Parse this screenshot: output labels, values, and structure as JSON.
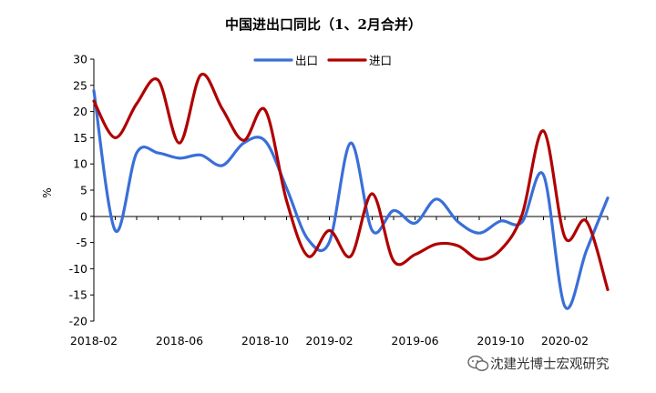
{
  "chart_data": {
    "type": "line",
    "title": "中国进出口同比（1、2月合并）",
    "xlabel": "",
    "ylabel": "%",
    "ylim": [
      -20,
      30
    ],
    "yticks": [
      30,
      25,
      20,
      15,
      10,
      5,
      0,
      -5,
      -10,
      -15,
      -20
    ],
    "xtick_labels": [
      "2018-02",
      "2018-06",
      "2018-10",
      "2019-02",
      "2019-06",
      "2019-10",
      "2020-02"
    ],
    "x": [
      "2018-02",
      "2018-03",
      "2018-04",
      "2018-05",
      "2018-06",
      "2018-07",
      "2018-08",
      "2018-09",
      "2018-10",
      "2018-11",
      "2018-12",
      "2019-02",
      "2019-03",
      "2019-04",
      "2019-05",
      "2019-06",
      "2019-07",
      "2019-08",
      "2019-09",
      "2019-10",
      "2019-11",
      "2019-12",
      "2020-02",
      "2020-03",
      "2020-04"
    ],
    "series": [
      {
        "name": "出口",
        "color": "#3a6fd8",
        "values": [
          24,
          -2.7,
          12.1,
          12.1,
          11.1,
          11.7,
          9.7,
          14.0,
          14.4,
          5.4,
          -4.4,
          -4.9,
          14.0,
          -2.7,
          1.1,
          -1.3,
          3.3,
          -1.0,
          -3.2,
          -0.9,
          -1.1,
          7.9,
          -17.2,
          -6.6,
          3.5
        ]
      },
      {
        "name": "进口",
        "color": "#b00000",
        "values": [
          22.0,
          15.0,
          21.5,
          26.0,
          14.0,
          27.0,
          20.5,
          14.5,
          20.3,
          3.0,
          -7.6,
          -2.7,
          -7.6,
          4.3,
          -8.5,
          -7.3,
          -5.3,
          -5.6,
          -8.2,
          -6.4,
          0.3,
          16.3,
          -4.0,
          -0.9,
          -14.0
        ]
      }
    ],
    "legend_position": "top-center",
    "grid": false
  },
  "watermark": {
    "text": "沈建光博士宏观研究",
    "icon": "wechat-icon"
  }
}
